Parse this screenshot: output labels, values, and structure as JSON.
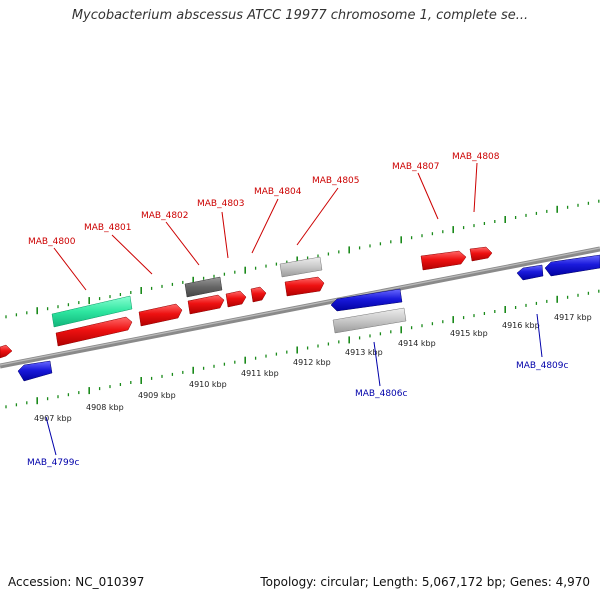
{
  "title": "Mycobacterium abscessus ATCC 19977 chromosome 1, complete se...",
  "footer": {
    "accession": "Accession: NC_010397",
    "summary": "Topology: circular; Length: 5,067,172 bp; Genes: 4,970"
  },
  "colors": {
    "forward_gene": "#ee1111",
    "reverse_gene": "#1a1adc",
    "forward_label": "#cc0000",
    "reverse_label": "#0000aa",
    "tick": "#1a8a1a",
    "backbone": "#8a8a8a",
    "rna": "#2ee6a0",
    "pseudo_dark": "#666666",
    "pseudo_light": "#c8c8c8"
  },
  "forward_labels": [
    "MAB_4800",
    "MAB_4801",
    "MAB_4802",
    "MAB_4803",
    "MAB_4804",
    "MAB_4805",
    "MAB_4807",
    "MAB_4808"
  ],
  "reverse_labels": [
    "MAB_4799c",
    "MAB_4806c",
    "MAB_4809c"
  ],
  "kbp_labels": [
    "4907 kbp",
    "4908 kbp",
    "4909 kbp",
    "4910 kbp",
    "4911 kbp",
    "4912 kbp",
    "4913 kbp",
    "4914 kbp",
    "4915 kbp",
    "4916 kbp",
    "4917 kbp"
  ]
}
